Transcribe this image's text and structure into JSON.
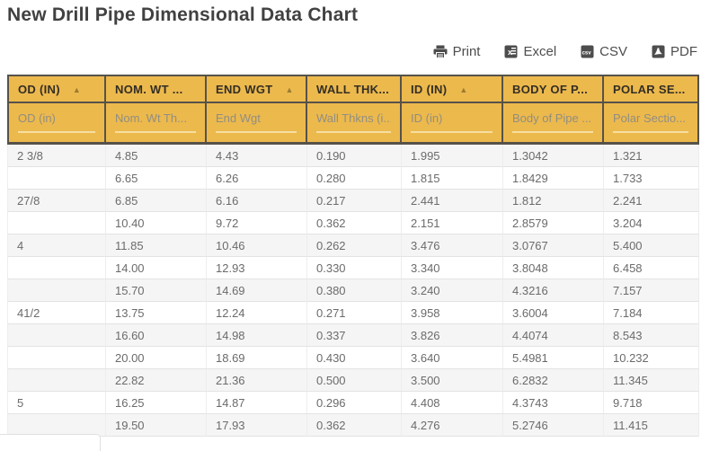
{
  "page": {
    "title": "New Drill Pipe Dimensional Data Chart"
  },
  "toolbar": {
    "buttons": [
      {
        "label": "Print",
        "icon": "printer-icon"
      },
      {
        "label": "Excel",
        "icon": "excel-icon"
      },
      {
        "label": "CSV",
        "icon": "csv-icon"
      },
      {
        "label": "PDF",
        "icon": "pdf-icon"
      }
    ]
  },
  "icons": {
    "sort_ascending": "▲"
  },
  "colors": {
    "header_background": "#ECB94D",
    "header_text": "#332E24",
    "header_border": "#56524A",
    "sort_arrow": "#9B7B30",
    "filter_placeholder_text": "#918E81",
    "filter_underline": "#F5DFA2",
    "row_stripe": "#F5F5F5",
    "cell_text": "#6B6B6B"
  },
  "table": {
    "columns": [
      {
        "key": "od",
        "header": "OD (IN)",
        "sorted": "asc",
        "filter_placeholder": "OD (in)"
      },
      {
        "key": "nom-wt",
        "header": "NOM. WT ...",
        "sorted": null,
        "filter_placeholder": "Nom. Wt Th..."
      },
      {
        "key": "end-wgt",
        "header": "END WGT",
        "sorted": "asc",
        "filter_placeholder": "End Wgt"
      },
      {
        "key": "wall-thk",
        "header": "WALL THK...",
        "sorted": null,
        "filter_placeholder": "Wall Thkns (i..."
      },
      {
        "key": "id",
        "header": "ID (IN)",
        "sorted": "asc",
        "filter_placeholder": "ID (in)"
      },
      {
        "key": "body-of-pipe",
        "header": "BODY OF P...",
        "sorted": null,
        "filter_placeholder": "Body of Pipe ..."
      },
      {
        "key": "polar-section",
        "header": "POLAR SE...",
        "sorted": null,
        "filter_placeholder": "Polar Sectio..."
      }
    ],
    "rows": [
      [
        "2 3/8",
        "4.85",
        "4.43",
        "0.190",
        "1.995",
        "1.3042",
        "1.321"
      ],
      [
        "",
        "6.65",
        "6.26",
        "0.280",
        "1.815",
        "1.8429",
        "1.733"
      ],
      [
        "27/8",
        "6.85",
        "6.16",
        "0.217",
        "2.441",
        "1.812",
        "2.241"
      ],
      [
        "",
        "10.40",
        "9.72",
        "0.362",
        "2.151",
        "2.8579",
        "3.204"
      ],
      [
        "4",
        "11.85",
        "10.46",
        "0.262",
        "3.476",
        "3.0767",
        "5.400"
      ],
      [
        "",
        "14.00",
        "12.93",
        "0.330",
        "3.340",
        "3.8048",
        "6.458"
      ],
      [
        "",
        "15.70",
        "14.69",
        "0.380",
        "3.240",
        "4.3216",
        "7.157"
      ],
      [
        "41/2",
        "13.75",
        "12.24",
        "0.271",
        "3.958",
        "3.6004",
        "7.184"
      ],
      [
        "",
        "16.60",
        "14.98",
        "0.337",
        "3.826",
        "4.4074",
        "8.543"
      ],
      [
        "",
        "20.00",
        "18.69",
        "0.430",
        "3.640",
        "5.4981",
        "10.232"
      ],
      [
        "",
        "22.82",
        "21.36",
        "0.500",
        "3.500",
        "6.2832",
        "11.345"
      ],
      [
        "5",
        "16.25",
        "14.87",
        "0.296",
        "4.408",
        "4.3743",
        "9.718"
      ],
      [
        "",
        "19.50",
        "17.93",
        "0.362",
        "4.276",
        "5.2746",
        "11.415"
      ]
    ]
  }
}
